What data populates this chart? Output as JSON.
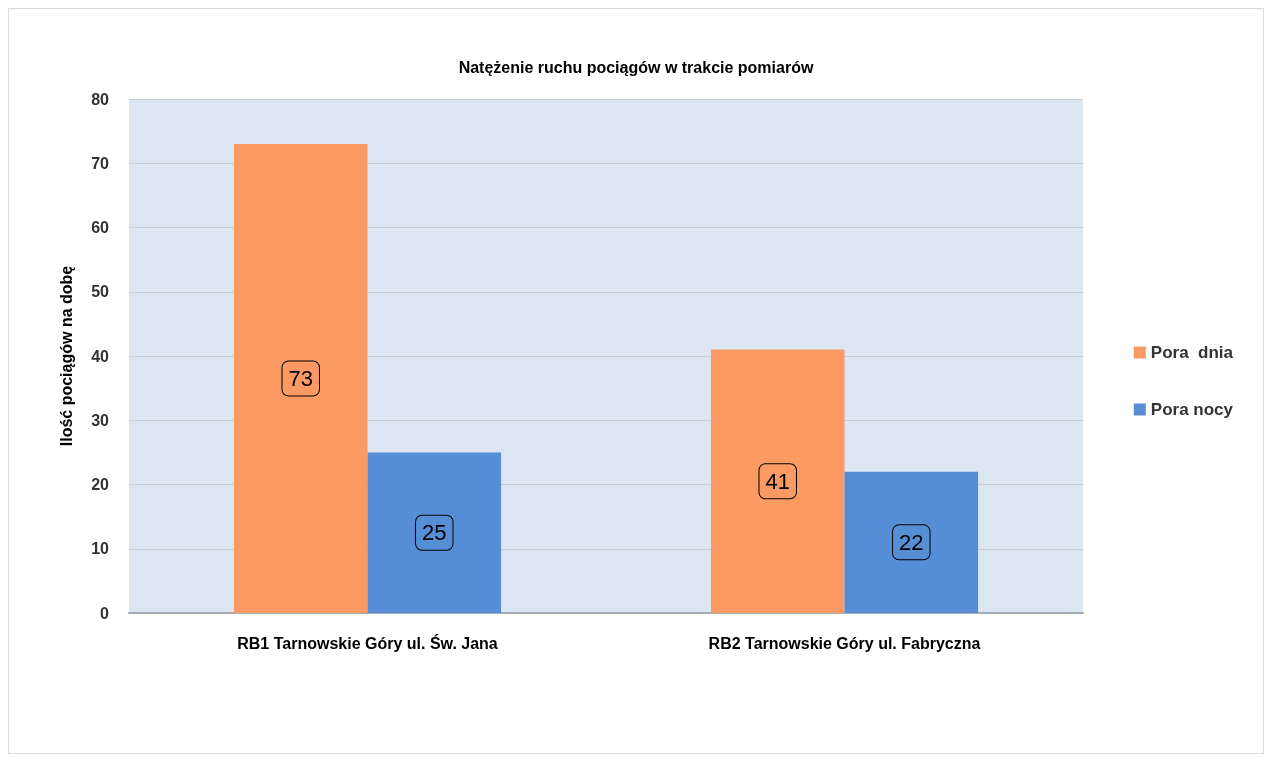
{
  "chart_data": {
    "type": "bar",
    "title": "Natężenie ruchu pociągów w trakcie pomiarów",
    "ylabel": "Ilość pociągów na dobę",
    "categories": [
      "RB1 Tarnowskie Góry ul. Św. Jana",
      "RB2 Tarnowskie Góry ul. Fabryczna"
    ],
    "series": [
      {
        "name": "Pora  dnia",
        "color": "#fb9a63",
        "values": [
          73,
          41
        ]
      },
      {
        "name": "Pora nocy",
        "color": "#558ed5",
        "values": [
          25,
          22
        ]
      }
    ],
    "ylim": [
      0,
      80
    ],
    "yticks": [
      0,
      10,
      20,
      30,
      40,
      50,
      60,
      70,
      80
    ],
    "grid": "y",
    "legend": "right",
    "data_labels": true
  }
}
